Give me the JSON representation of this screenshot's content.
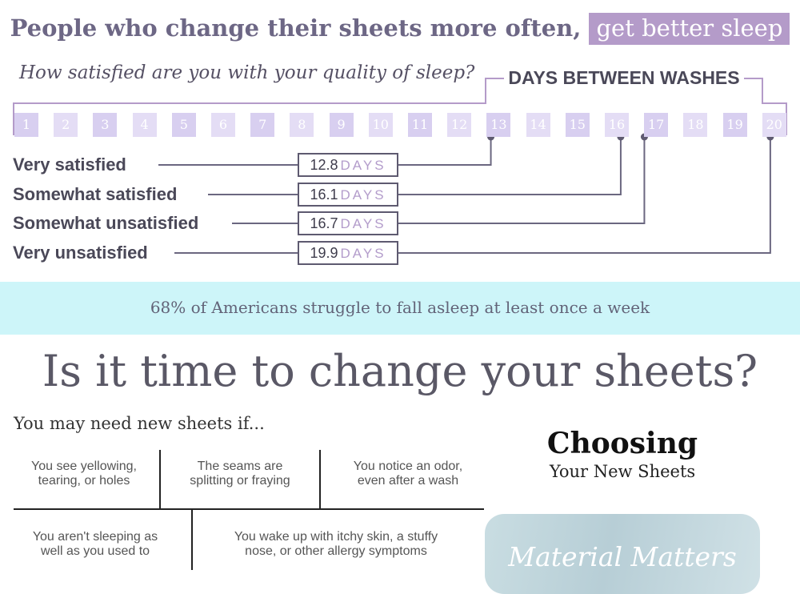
{
  "headline": {
    "text": "People who change their sheets more often,",
    "highlight": "get better sleep"
  },
  "question": "How satisfied are you with your quality of sleep?",
  "axis_label": "DAYS BETWEEN WASHES",
  "colors": {
    "accent_purple": "#b49bc9",
    "connector": "#6b6780",
    "band": "#cdf5f9"
  },
  "chart_data": {
    "type": "bar",
    "title": "People who change their sheets more often, get better sleep",
    "xlabel": "DAYS BETWEEN WASHES",
    "ylabel": "How satisfied are you with your quality of sleep?",
    "x_ticks": [
      "1",
      "2",
      "3",
      "4",
      "5",
      "6",
      "7",
      "8",
      "9",
      "10",
      "11",
      "12",
      "13",
      "14",
      "15",
      "16",
      "17",
      "18",
      "19",
      "20"
    ],
    "xlim": [
      1,
      20
    ],
    "categories": [
      "Very satisfied",
      "Somewhat satisfied",
      "Somewhat unsatisfied",
      "Very unsatisfied"
    ],
    "values": [
      12.8,
      16.1,
      16.7,
      19.9
    ],
    "value_labels": [
      "12.8",
      "16.1",
      "16.7",
      "19.9"
    ],
    "unit": "DAYS"
  },
  "stat": "68% of Americans struggle to fall asleep at least once a week",
  "section_title": "Is it time to change your sheets?",
  "may_need": "You may need new sheets if...",
  "reasons": [
    {
      "line1": "You see yellowing,",
      "line2": "tearing, or holes"
    },
    {
      "line1": "The seams are",
      "line2": "splitting or fraying"
    },
    {
      "line1": "You notice an odor,",
      "line2": "even after a wash"
    },
    {
      "line1": "You aren't sleeping as",
      "line2": "well as you used to"
    },
    {
      "line1": "You wake up with itchy skin, a stuffy",
      "line2": "nose,  or other allergy symptoms"
    }
  ],
  "choosing": {
    "title": "Choosing",
    "subtitle": "Your New Sheets"
  },
  "material_card": "Material Matters"
}
